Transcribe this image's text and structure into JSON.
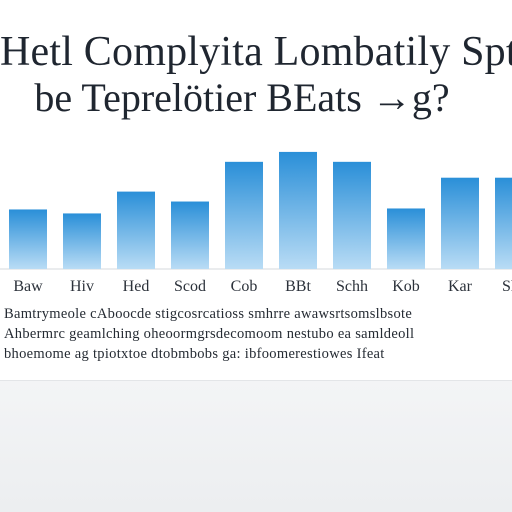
{
  "title": {
    "line1": "Hetl Complyita Lombatily Spti",
    "line2": "be Teprelötier BEats →g?"
  },
  "caption": {
    "line1": "Bamtrymeole cAboocde stigcosrcatioss smhrre awawsrtsomslbsote",
    "line2": "Ahbermrc geamlching oheoormgrsdecomoom nestubo ea samldeoll",
    "line3": "bhoemome ag tpiotxtoe dtobmbobs ga: ibfoomerestiowes Ifeat"
  },
  "chart_data": {
    "type": "bar",
    "title": "Hetl Complyita Lombatily Spti",
    "subtitle": "be Teprelötier BEats →g?",
    "categories": [
      "Baw",
      "Hiv",
      "Hed",
      "Scod",
      "Cob",
      "BBt",
      "Schh",
      "Kob",
      "Kar",
      "Sha"
    ],
    "values": [
      60,
      56,
      78,
      68,
      108,
      118,
      108,
      61,
      92,
      92
    ],
    "ylim": [
      0,
      130
    ],
    "xlabel": "",
    "ylabel": "",
    "grid": false,
    "legend": "none",
    "bar_color_top": "#2a8fd8",
    "bar_color_bottom": "#b9dcf5"
  }
}
